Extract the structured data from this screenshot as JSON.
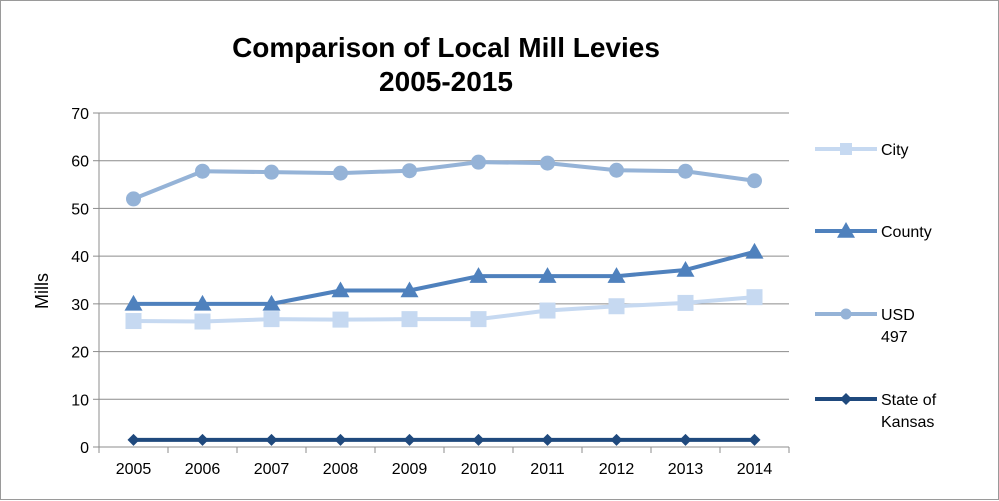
{
  "chart_data": {
    "type": "line",
    "title_lines": [
      "Comparison of Local Mill Levies",
      "2005-2015"
    ],
    "xlabel": "",
    "ylabel": "Mills",
    "ylim": [
      0,
      70
    ],
    "yticks": [
      0,
      10,
      20,
      30,
      40,
      50,
      60,
      70
    ],
    "categories": [
      "2005",
      "2006",
      "2007",
      "2008",
      "2009",
      "2010",
      "2011",
      "2012",
      "2013",
      "2014"
    ],
    "grid": "horizontal",
    "legend_position": "right",
    "series": [
      {
        "name": "City",
        "legend_lines": [
          "City"
        ],
        "marker": "square",
        "color": "#c6d9f1",
        "values": [
          26.4,
          26.3,
          26.8,
          26.7,
          26.8,
          26.8,
          28.6,
          29.5,
          30.2,
          31.4
        ]
      },
      {
        "name": "County",
        "legend_lines": [
          "County"
        ],
        "marker": "triangle",
        "color": "#4f81bd",
        "values": [
          30.0,
          30.0,
          30.0,
          32.8,
          32.8,
          35.8,
          35.8,
          35.8,
          37.1,
          40.9
        ]
      },
      {
        "name": "USD 497",
        "legend_lines": [
          "USD",
          "497"
        ],
        "marker": "circle",
        "color": "#95b3d7",
        "values": [
          52.0,
          57.8,
          57.6,
          57.4,
          57.9,
          59.7,
          59.5,
          58.0,
          57.8,
          55.8
        ]
      },
      {
        "name": "State of Kansas",
        "legend_lines": [
          "State of",
          "Kansas"
        ],
        "marker": "diamond",
        "color": "#1f497d",
        "values": [
          1.5,
          1.5,
          1.5,
          1.5,
          1.5,
          1.5,
          1.5,
          1.5,
          1.5,
          1.5
        ]
      }
    ]
  }
}
